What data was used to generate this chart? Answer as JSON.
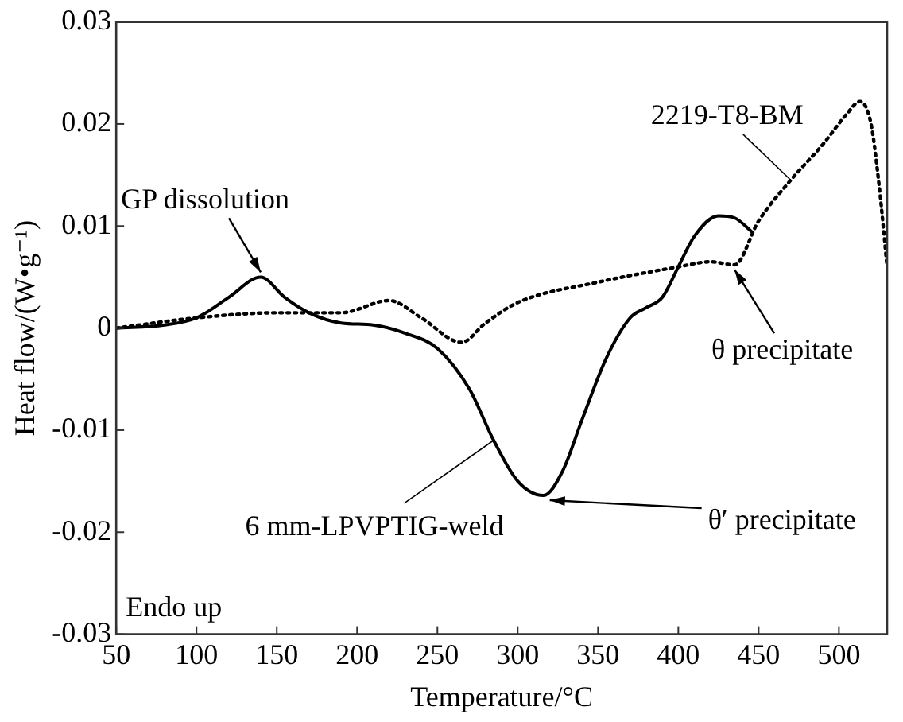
{
  "chart_data": {
    "type": "line",
    "xlabel": "Temperature/°C",
    "ylabel": "Heat flow/(W•g⁻¹)",
    "xlim": [
      50,
      530
    ],
    "xticks": [
      50,
      100,
      150,
      200,
      250,
      300,
      350,
      400,
      450,
      500
    ],
    "ylim": [
      -0.03,
      0.03
    ],
    "yticks": [
      -0.03,
      -0.02,
      -0.01,
      0,
      0.01,
      0.02,
      0.03
    ],
    "grid": false,
    "marker": "none",
    "series": [
      {
        "name": "6 mm-LPVPTIG-weld",
        "color": "#000000",
        "line_style": "solid",
        "x": [
          50,
          80,
          100,
          120,
          140,
          155,
          170,
          190,
          210,
          230,
          250,
          270,
          285,
          300,
          316,
          328,
          340,
          355,
          370,
          380,
          390,
          400,
          410,
          425,
          435,
          446
        ],
        "values": [
          0,
          0.0003,
          0.001,
          0.003,
          0.005,
          0.003,
          0.0015,
          0.0005,
          0.0003,
          -0.0005,
          -0.002,
          -0.006,
          -0.011,
          -0.015,
          -0.0164,
          -0.014,
          -0.009,
          -0.003,
          0.001,
          0.002,
          0.003,
          0.006,
          0.009,
          0.011,
          0.0108,
          0.0094
        ]
      },
      {
        "name": "2219-T8-BM",
        "color": "#000000",
        "line_style": "dotted",
        "x": [
          50,
          100,
          150,
          190,
          220,
          240,
          265,
          280,
          300,
          350,
          400,
          420,
          435,
          450,
          470,
          490,
          505,
          513,
          520,
          525,
          530
        ],
        "values": [
          0,
          0.001,
          0.0015,
          0.0015,
          0.0027,
          0.001,
          -0.0014,
          0.0005,
          0.0025,
          0.0045,
          0.006,
          0.0065,
          0.0062,
          0.0105,
          0.0145,
          0.018,
          0.021,
          0.0222,
          0.02,
          0.014,
          0.006
        ]
      }
    ],
    "annotations": [
      {
        "text": "GP dissolution",
        "x": 140,
        "y": 0.005
      },
      {
        "text": "θ precipitate",
        "x": 435,
        "y": 0.0062
      },
      {
        "text": "θ′ precipitate",
        "x": 316,
        "y": -0.0164
      },
      "Endo up"
    ]
  }
}
